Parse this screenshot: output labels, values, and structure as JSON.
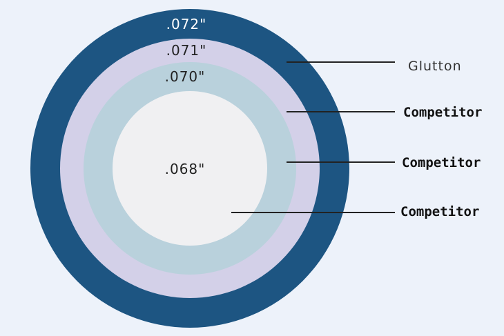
{
  "colors": {
    "background": "#edf2fa",
    "outer_ring": "#1d5582",
    "second_ring": "#d3d0e8",
    "third_ring": "#b9d1dc",
    "core": "#f0f0f2",
    "leader_line": "#222222"
  },
  "rings": [
    {
      "size": ".072\"",
      "label": "Glutton"
    },
    {
      "size": ".071\"",
      "label": "Competitor"
    },
    {
      "size": ".070\"",
      "label": "Competitor"
    },
    {
      "size": ".068\"",
      "label": "Competitor"
    }
  ]
}
